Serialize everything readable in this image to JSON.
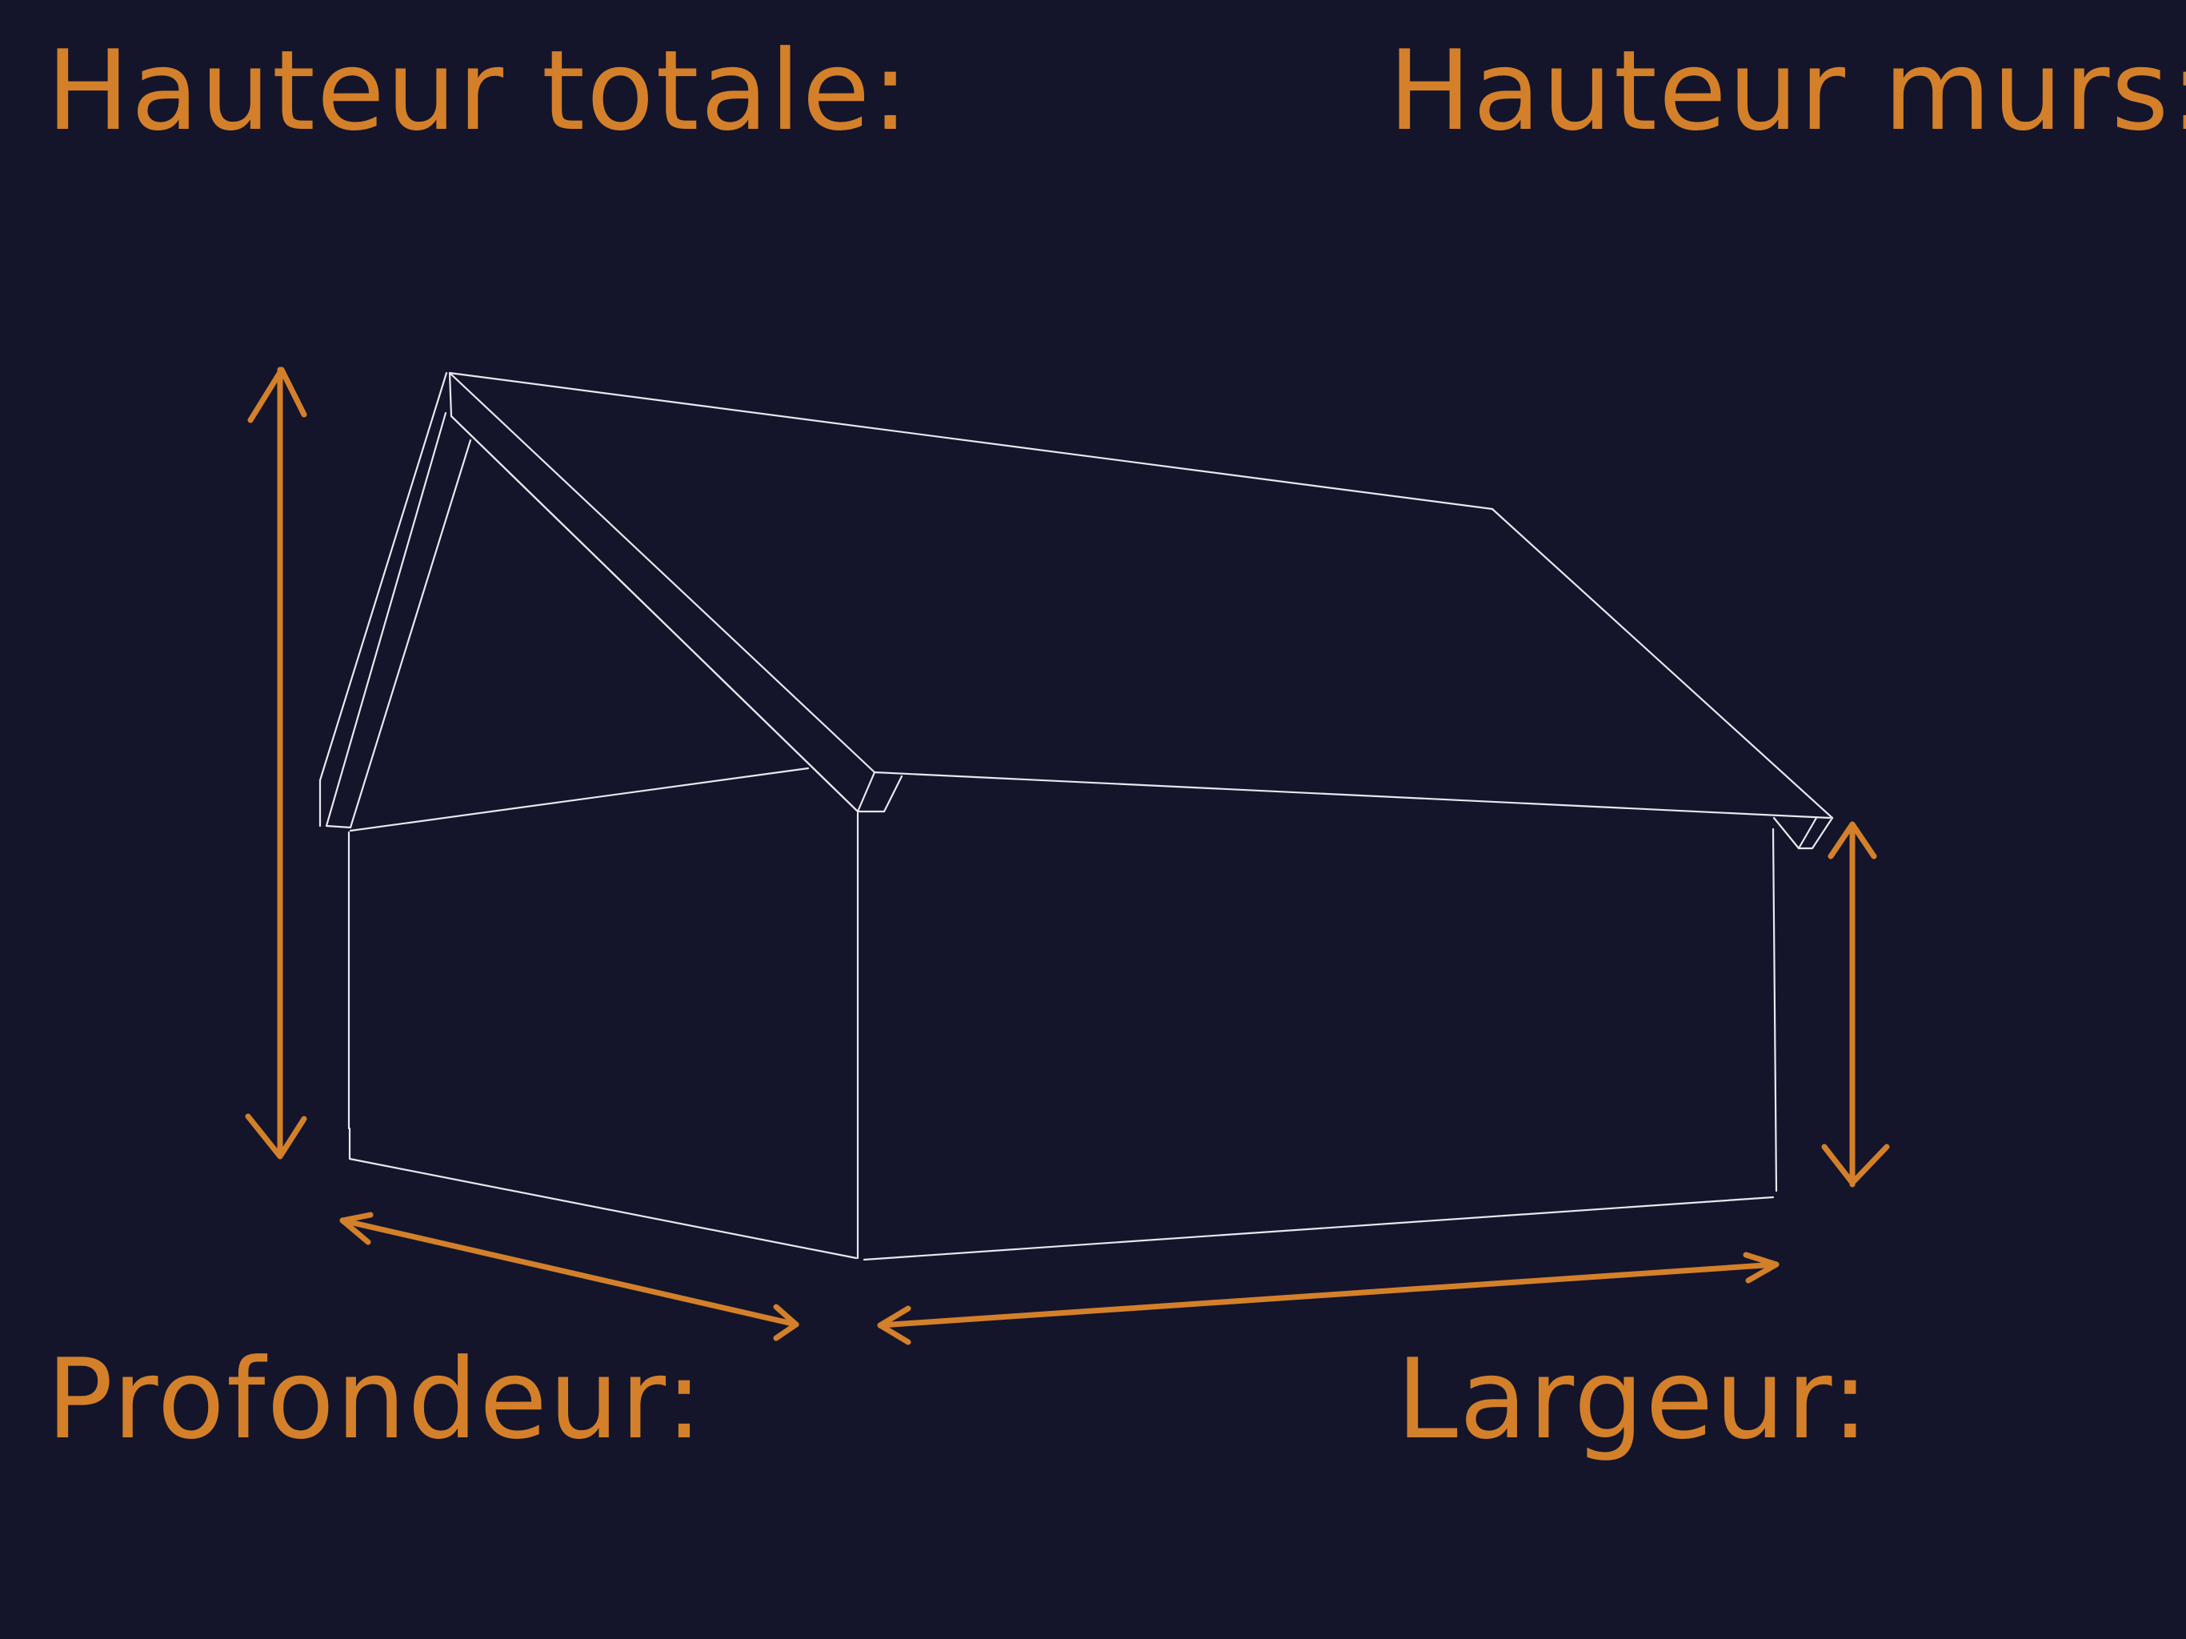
{
  "labels": {
    "total_height": "Hauteur totale:",
    "wall_height": "Hauteur murs:",
    "depth": "Profondeur:",
    "width": "Largeur:"
  },
  "colors": {
    "background": "#14152a",
    "accent": "#d4802a",
    "line": "#e8e8ee"
  }
}
